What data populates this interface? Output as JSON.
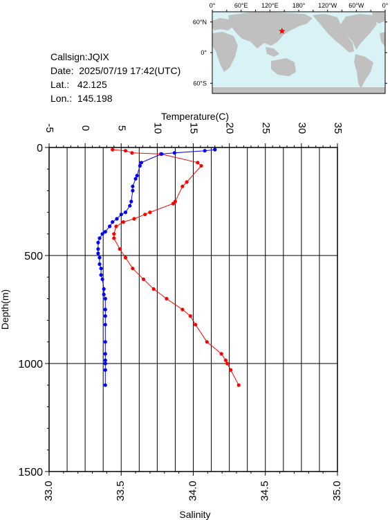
{
  "station": {
    "callsign_line": "Callsign:JQIX",
    "date_line": "Date:  2025/07/19 17:42(UTC)",
    "lat_line": "Lat.:   42.125",
    "lon_line": "Lon.:  145.198"
  },
  "map": {
    "lon_tick_labels": [
      "0°",
      "60°E",
      "120°E",
      "180°",
      "120°W",
      "60°W",
      "0°"
    ],
    "lat_tick_labels": [
      "60°N",
      "0°",
      "60°S"
    ],
    "ocean_color": "#d9f2f6",
    "land_color": "#c0c0c0",
    "marker": {
      "lon": 145.198,
      "lat": 42.125,
      "symbol": "star",
      "color": "#ff0000"
    }
  },
  "chart_data": {
    "type": "line",
    "xlabel_top": "Temperature(C)",
    "xlabel_bottom": "Salinity",
    "ylabel": "Depth(m)",
    "temperature_axis": {
      "range": [
        -5,
        35
      ],
      "ticks": [
        "-5",
        "0",
        "5",
        "10",
        "15",
        "20",
        "25",
        "30",
        "35"
      ]
    },
    "salinity_axis": {
      "range": [
        33.0,
        35.0
      ],
      "ticks": [
        "33.0",
        "33.5",
        "34.0",
        "34.5",
        "35.0"
      ]
    },
    "depth_axis": {
      "range": [
        0,
        1500
      ],
      "inverted": true,
      "ticks": [
        "0",
        "500",
        "1000",
        "1500"
      ]
    },
    "grid": true,
    "series": [
      {
        "variable": "temperature",
        "color": "#ff0000",
        "points": [
          [
            3.8,
            10
          ],
          [
            5.6,
            15
          ],
          [
            6.5,
            25
          ],
          [
            10.5,
            30
          ],
          [
            15.6,
            70
          ],
          [
            16.1,
            85
          ],
          [
            14.1,
            160
          ],
          [
            13.5,
            180
          ],
          [
            12.5,
            250
          ],
          [
            12.2,
            260
          ],
          [
            9.0,
            300
          ],
          [
            8.3,
            310
          ],
          [
            6.8,
            330
          ],
          [
            5.3,
            345
          ],
          [
            4.3,
            365
          ],
          [
            4.0,
            400
          ],
          [
            4.0,
            420
          ],
          [
            4.8,
            470
          ],
          [
            5.6,
            510
          ],
          [
            6.6,
            560
          ],
          [
            8.1,
            610
          ],
          [
            9.5,
            655
          ],
          [
            11.3,
            700
          ],
          [
            13.5,
            750
          ],
          [
            14.6,
            780
          ],
          [
            15.3,
            820
          ],
          [
            16.9,
            900
          ],
          [
            18.9,
            955
          ],
          [
            19.5,
            985
          ],
          [
            19.7,
            1000
          ],
          [
            20.2,
            1030
          ],
          [
            21.3,
            1100
          ]
        ]
      },
      {
        "variable": "salinity",
        "color": "#0000ff",
        "points": [
          [
            34.15,
            10
          ],
          [
            34.08,
            15
          ],
          [
            33.87,
            25
          ],
          [
            33.78,
            30
          ],
          [
            33.64,
            70
          ],
          [
            33.63,
            85
          ],
          [
            33.61,
            130
          ],
          [
            33.6,
            145
          ],
          [
            33.58,
            180
          ],
          [
            33.58,
            200
          ],
          [
            33.57,
            250
          ],
          [
            33.56,
            270
          ],
          [
            33.53,
            300
          ],
          [
            33.5,
            310
          ],
          [
            33.47,
            330
          ],
          [
            33.44,
            345
          ],
          [
            33.42,
            365
          ],
          [
            33.39,
            390
          ],
          [
            33.37,
            400
          ],
          [
            33.35,
            420
          ],
          [
            33.34,
            440
          ],
          [
            33.34,
            470
          ],
          [
            33.34,
            490
          ],
          [
            33.35,
            510
          ],
          [
            33.35,
            540
          ],
          [
            33.36,
            560
          ],
          [
            33.36,
            590
          ],
          [
            33.37,
            610
          ],
          [
            33.38,
            655
          ],
          [
            33.38,
            680
          ],
          [
            33.39,
            700
          ],
          [
            33.39,
            750
          ],
          [
            33.39,
            780
          ],
          [
            33.39,
            820
          ],
          [
            33.39,
            900
          ],
          [
            33.39,
            955
          ],
          [
            33.39,
            985
          ],
          [
            33.39,
            1000
          ],
          [
            33.39,
            1030
          ],
          [
            33.39,
            1100
          ]
        ]
      }
    ]
  }
}
